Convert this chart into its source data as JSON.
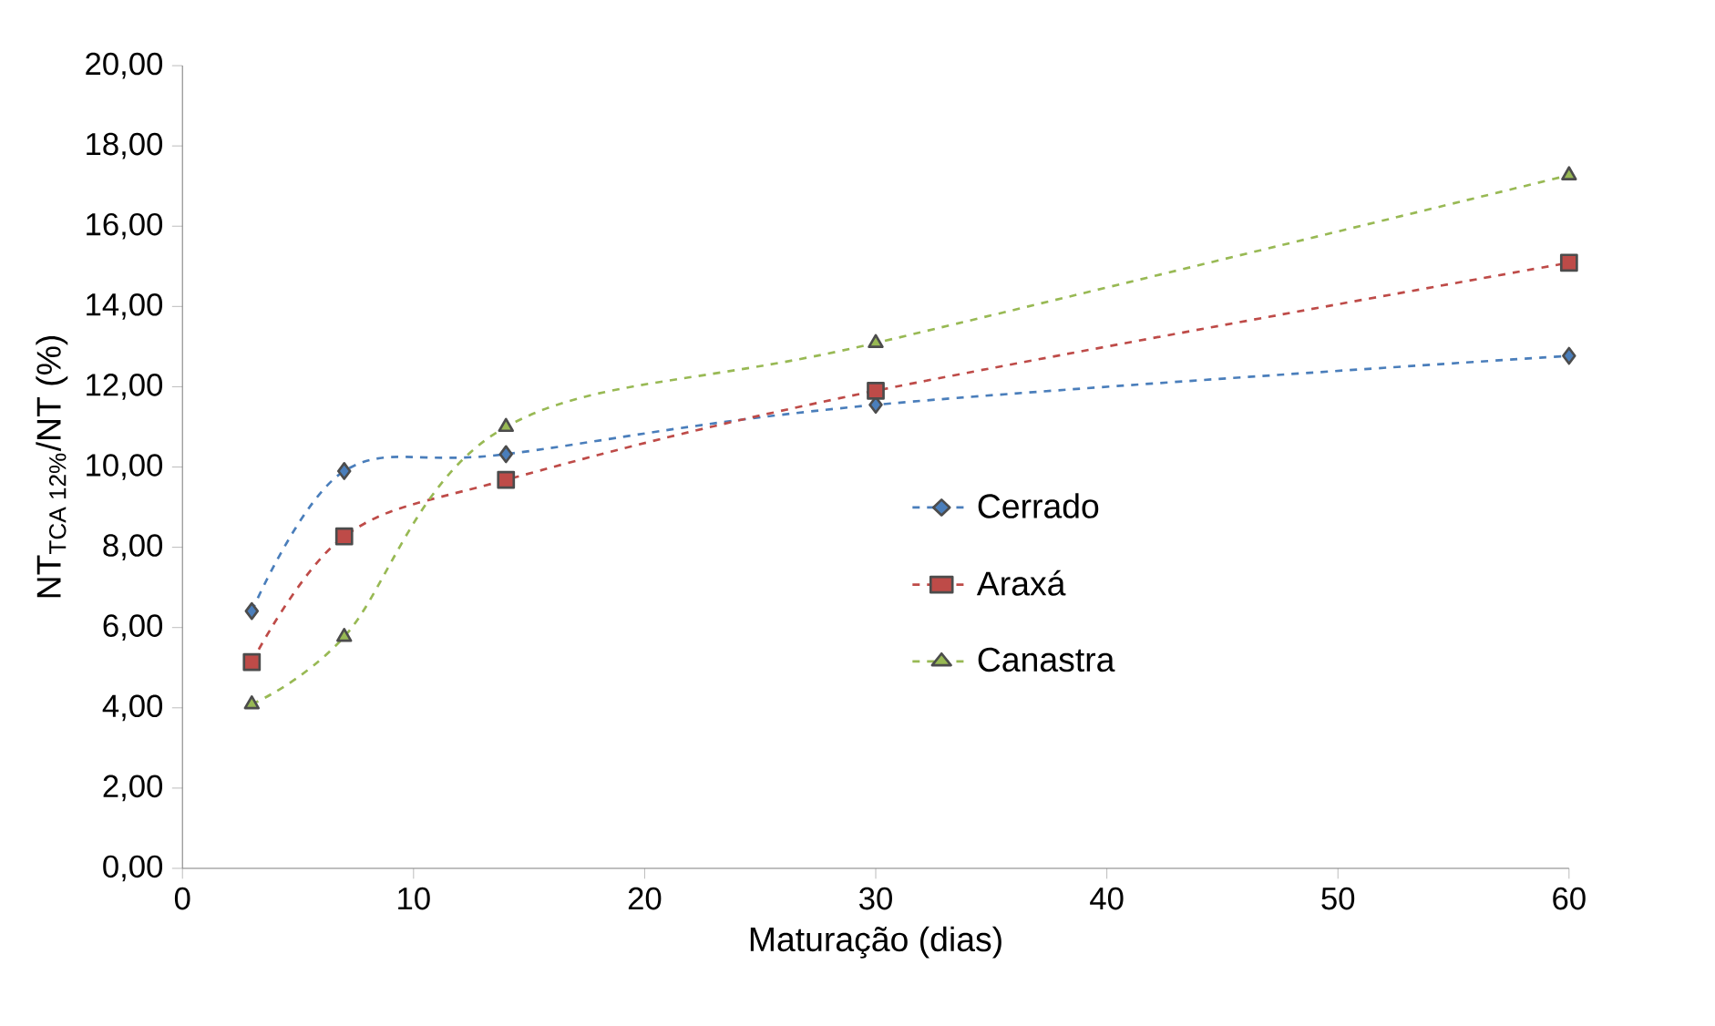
{
  "chart_data": {
    "type": "line",
    "xlabel": "Maturação (dias)",
    "ylabel": "NT$_{TCA 12%}$/NT (%)",
    "xlim": [
      0,
      60
    ],
    "xticks": [
      0,
      10,
      20,
      30,
      40,
      50,
      60
    ],
    "ylim": [
      0,
      20
    ],
    "yticks": [
      {
        "value": 0,
        "label": "0,00"
      },
      {
        "value": 2,
        "label": "2,00"
      },
      {
        "value": 4,
        "label": "4,00"
      },
      {
        "value": 6,
        "label": "6,00"
      },
      {
        "value": 8,
        "label": "8,00"
      },
      {
        "value": 10,
        "label": "10,00"
      },
      {
        "value": 12,
        "label": "12,00"
      },
      {
        "value": 14,
        "label": "14,00"
      },
      {
        "value": 16,
        "label": "16,00"
      },
      {
        "value": 18,
        "label": "18,00"
      },
      {
        "value": 20,
        "label": "20,00"
      }
    ],
    "x": [
      3,
      7,
      14,
      30,
      60
    ],
    "grid": false,
    "legend": "right",
    "line_style": "dashed",
    "series": [
      {
        "name": "Cerrado",
        "color": "#4a7ebb",
        "marker": "diamond",
        "values": [
          6.41,
          9.9,
          10.32,
          11.55,
          12.77
        ]
      },
      {
        "name": "Araxá",
        "color": "#be4b48",
        "marker": "square",
        "values": [
          5.14,
          8.27,
          9.68,
          11.9,
          15.09
        ]
      },
      {
        "name": "Canastra",
        "color": "#98b954",
        "marker": "triangle",
        "values": [
          4.09,
          5.77,
          11.0,
          13.09,
          17.27
        ]
      }
    ]
  }
}
